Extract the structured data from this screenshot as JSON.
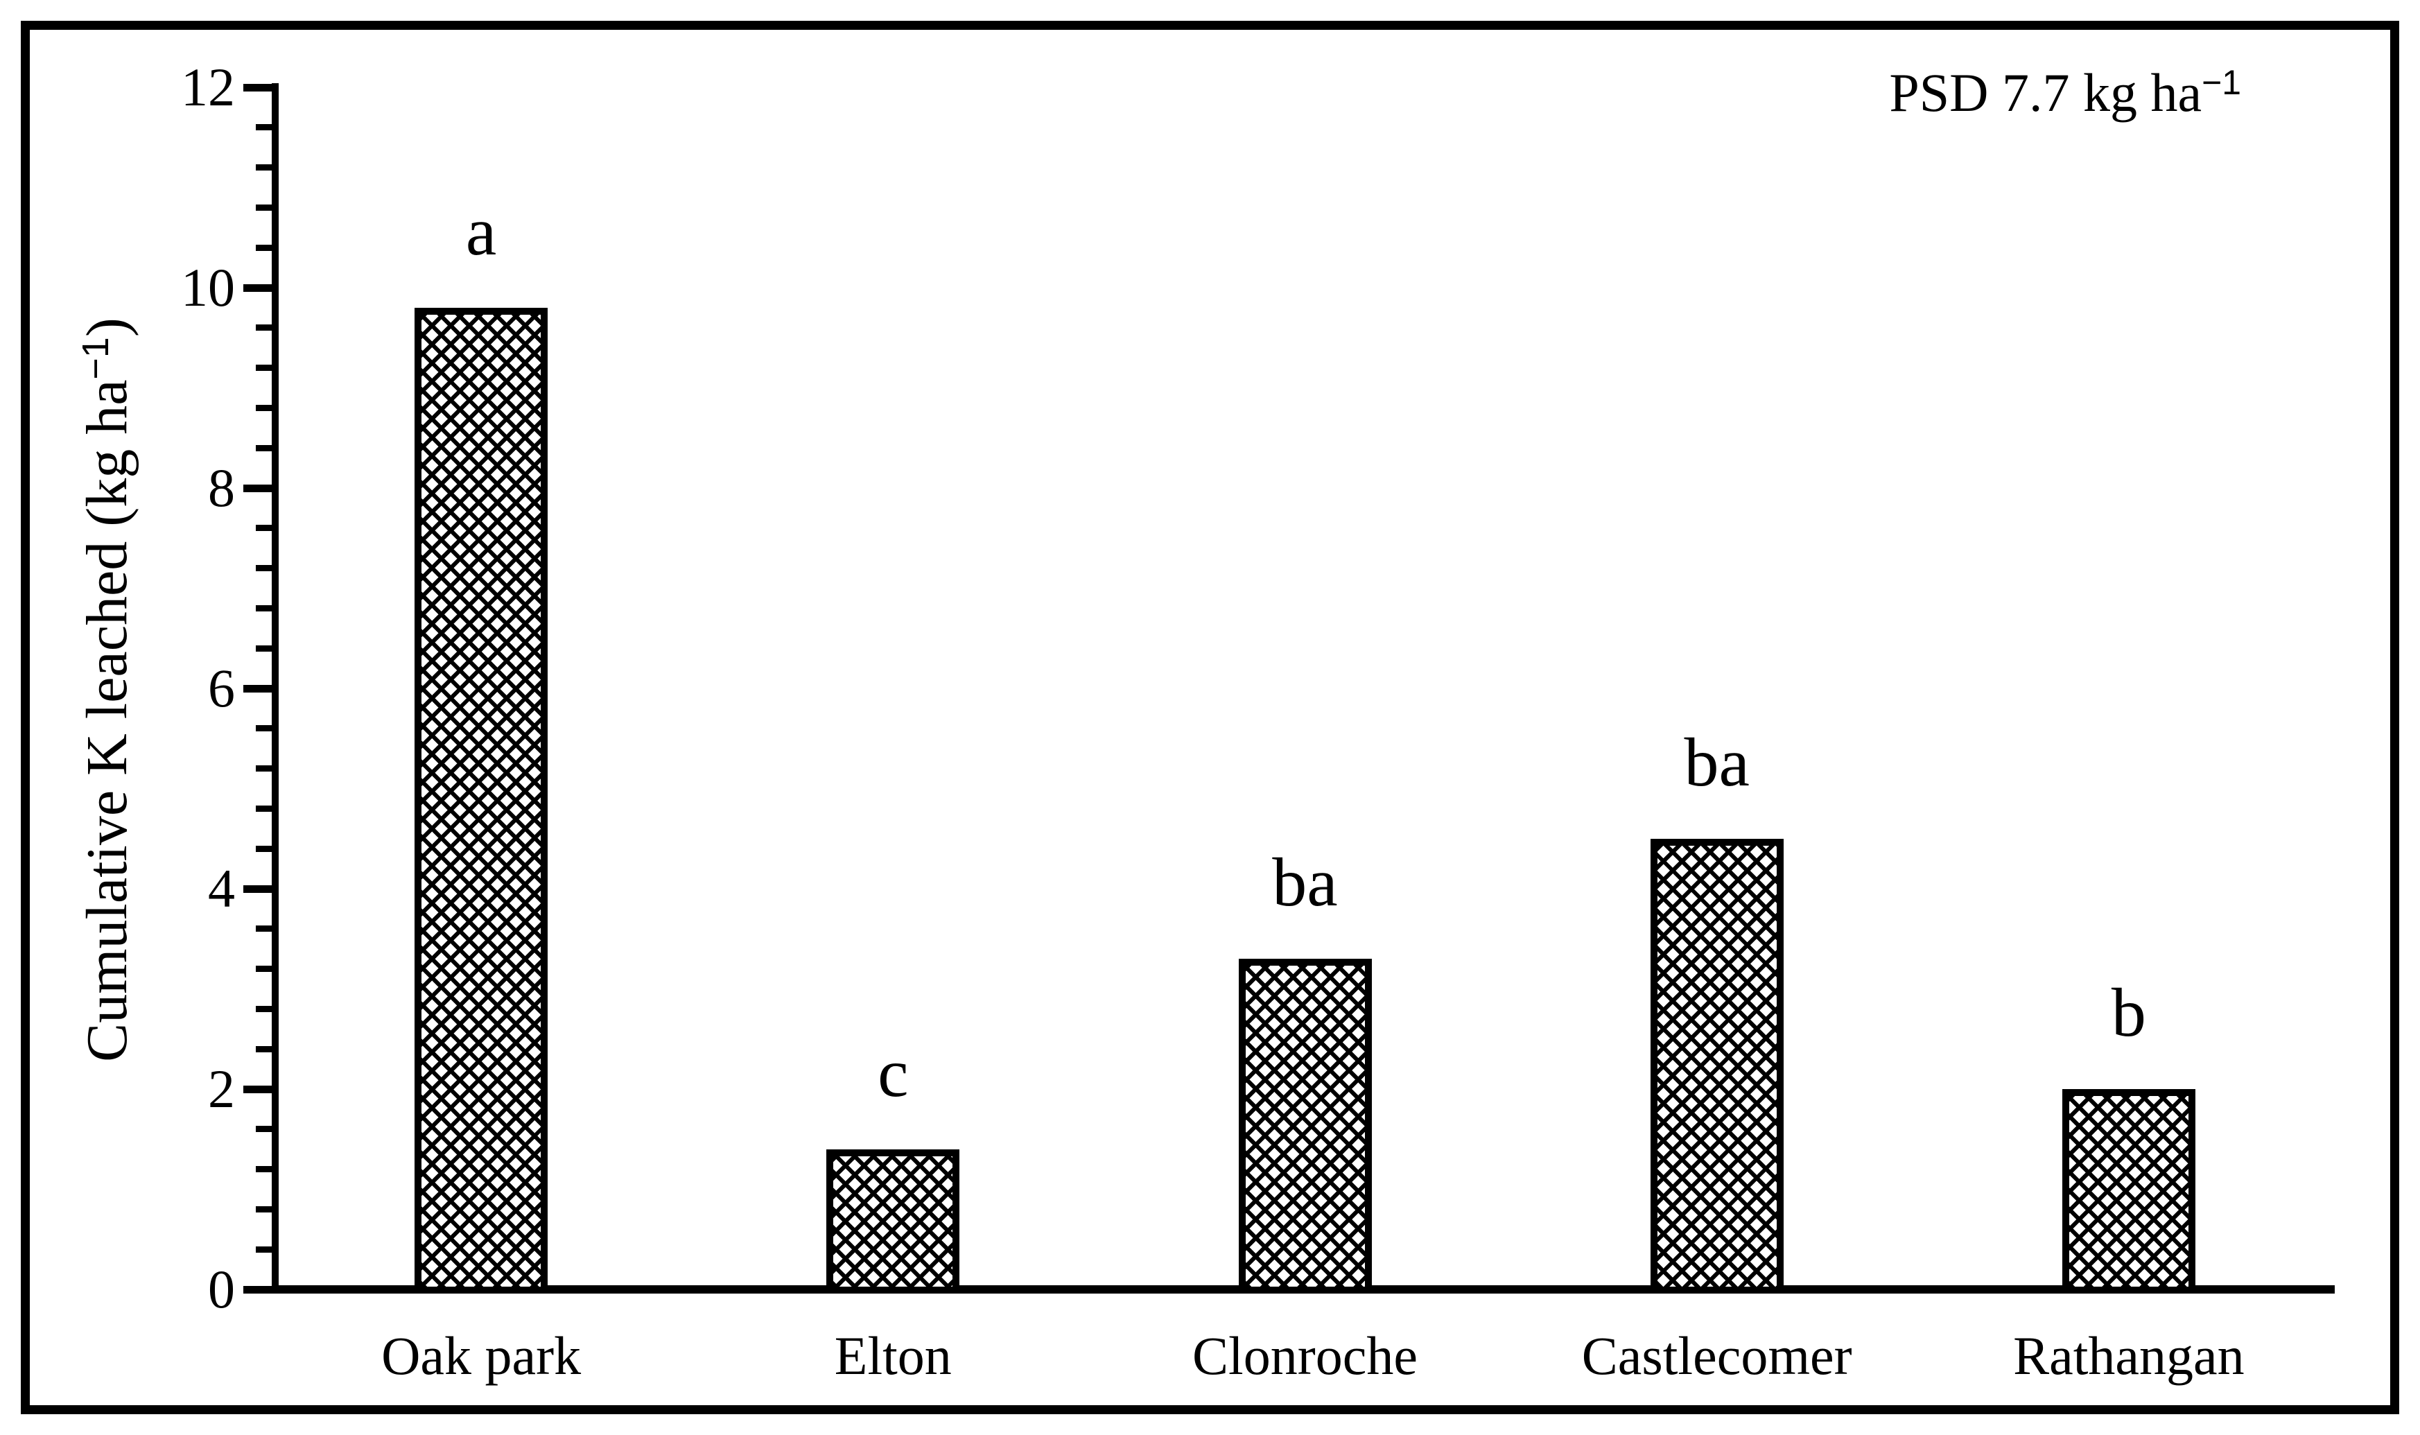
{
  "chart_data": {
    "type": "bar",
    "title": "",
    "categories": [
      "Oak park",
      "Elton",
      "Clonroche",
      "Castlecomer",
      "Rathangan"
    ],
    "values": [
      9.8,
      1.4,
      3.3,
      4.5,
      2.0
    ],
    "significance_letters": [
      "a",
      "c",
      "ba",
      "ba",
      "b"
    ],
    "xlabel": "",
    "ylabel": "Cumulative K leached (kg ha−1)",
    "ylabel_parts": {
      "prefix": "Cumulative K leached (kg ha",
      "sup": "−1",
      "suffix": ")"
    },
    "annotation": "PSD 7.7 kg ha−1",
    "annotation_parts": {
      "prefix": "PSD 7.7 kg ha",
      "sup": "−1"
    },
    "y_major_ticks": [
      0,
      2,
      4,
      6,
      8,
      10,
      12
    ],
    "y_minor_tick_step": 0.4,
    "ylim": [
      0,
      12
    ],
    "grid": "off",
    "legend": "none",
    "bar_fill_pattern": "diagonal-crosshatch",
    "bar_outline_color": "#000000",
    "background_color": "#ffffff",
    "frame_color": "#000000"
  }
}
